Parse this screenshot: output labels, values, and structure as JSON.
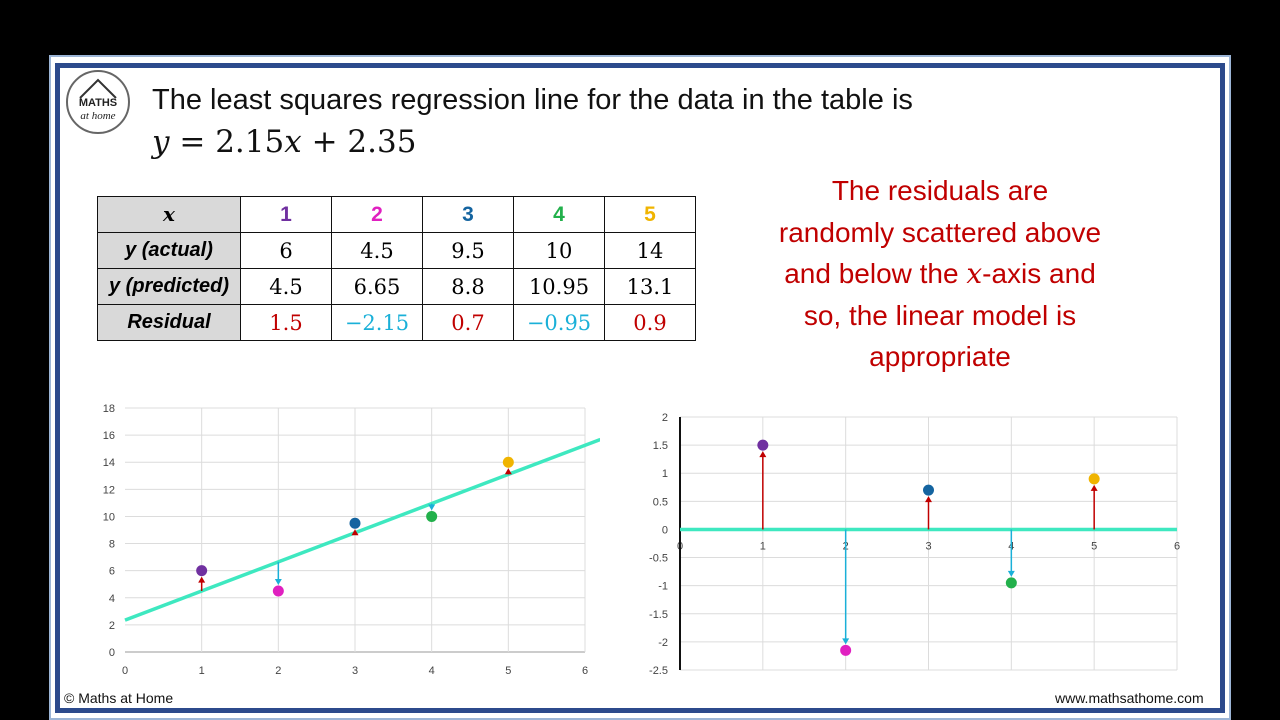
{
  "headline": "The least squares regression line for the data in the table is",
  "equation": {
    "y": "y",
    "eq": " = 2.15",
    "x": "x",
    "rest": " + 2.35"
  },
  "logo": {
    "main": "MATHS",
    "sub": "at home"
  },
  "table": {
    "header_label": "x",
    "x_values": [
      "1",
      "2",
      "3",
      "4",
      "5"
    ],
    "point_colors": [
      "#7030a0",
      "#e020c0",
      "#1464a0",
      "#22b04b",
      "#f0b400"
    ],
    "rows": [
      {
        "label": "y (actual)",
        "values": [
          "6",
          "4.5",
          "9.5",
          "10",
          "14"
        ]
      },
      {
        "label": "y (predicted)",
        "values": [
          "4.5",
          "6.65",
          "8.8",
          "10.95",
          "13.1"
        ]
      },
      {
        "label": "Residual",
        "values": [
          "1.5",
          "−2.15",
          "0.7",
          "−0.95",
          "0.9"
        ]
      }
    ],
    "residual_colors": [
      "#c00000",
      "#1ab0d8",
      "#c00000",
      "#1ab0d8",
      "#c00000"
    ]
  },
  "conclusion": {
    "line1": "The residuals are",
    "line2": "randomly scattered above",
    "line3a": "and below the ",
    "line3x": "x",
    "line3b": "-axis and",
    "line4": "so, the linear model is",
    "line5": "appropriate"
  },
  "footer": {
    "copyright": "© Maths at Home",
    "website": "www.mathsathome.com"
  },
  "colors": {
    "line": "#3ee8c0",
    "up_arrow": "#c00000",
    "down_arrow": "#1ab0d8",
    "frame": "#2c4a8c"
  },
  "chart_data": [
    {
      "type": "scatter",
      "x": [
        1,
        2,
        3,
        4,
        5
      ],
      "y": [
        6,
        4.5,
        9.5,
        10,
        14
      ],
      "predicted": [
        4.5,
        6.65,
        8.8,
        10.95,
        13.1
      ],
      "regression": {
        "slope": 2.15,
        "intercept": 2.35
      },
      "xlim": [
        0,
        6
      ],
      "ylim": [
        0,
        18
      ],
      "xticks": [
        "0",
        "1",
        "2",
        "3",
        "4",
        "5",
        "6"
      ],
      "yticks": [
        "0",
        "2",
        "4",
        "6",
        "8",
        "10",
        "12",
        "14",
        "16",
        "18"
      ],
      "grid": true
    },
    {
      "type": "scatter",
      "x": [
        1,
        2,
        3,
        4,
        5
      ],
      "y": [
        1.5,
        -2.15,
        0.7,
        -0.95,
        0.9
      ],
      "xlim": [
        0,
        6
      ],
      "ylim": [
        -2.5,
        2
      ],
      "xticks": [
        "0",
        "1",
        "2",
        "3",
        "4",
        "5",
        "6"
      ],
      "yticks": [
        "-2.5",
        "-2",
        "-1.5",
        "-1",
        "-0.5",
        "0",
        "0.5",
        "1",
        "1.5",
        "2"
      ],
      "grid": true
    }
  ]
}
